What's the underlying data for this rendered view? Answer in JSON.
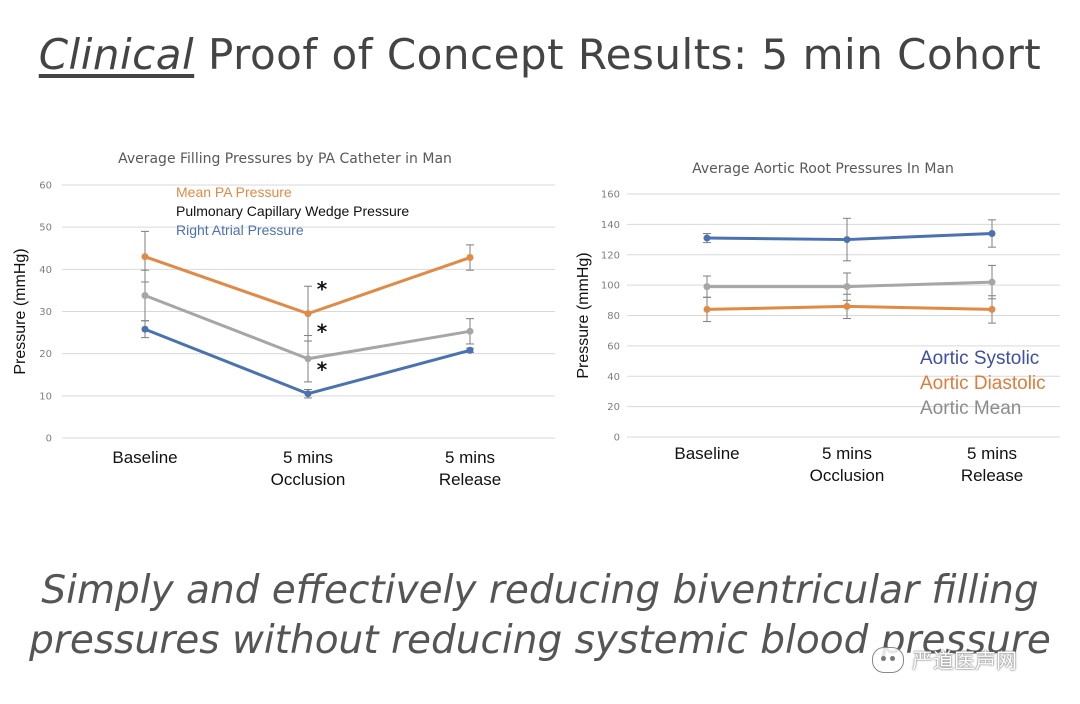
{
  "slide": {
    "title_emphasis": "Clinical",
    "title_rest": " Proof of Concept Results: 5 min Cohort",
    "tagline_line1": "Simply and effectively reducing biventricular filling",
    "tagline_line2": "pressures without reducing systemic blood pressure",
    "watermark": "严道医声网"
  },
  "chart_data": [
    {
      "type": "line",
      "title": "Average Filling Pressures by PA Catheter in Man",
      "xlabel": "",
      "ylabel": "Pressure (mmHg)",
      "ylim": [
        0,
        60
      ],
      "yticks": [
        "0",
        "10",
        "20",
        "30",
        "40",
        "50",
        "60"
      ],
      "categories": [
        [
          "Baseline"
        ],
        [
          "5 mins",
          "Occlusion"
        ],
        [
          "5 mins",
          "Release"
        ]
      ],
      "legend_position": "top-left",
      "grid": true,
      "series": [
        {
          "name": "Mean PA Pressure",
          "color": "#e08a45",
          "values": [
            43,
            29.5,
            42.8
          ],
          "errors": [
            6,
            6.5,
            3
          ]
        },
        {
          "name": "Pulmonary Capillary Wedge Pressure",
          "color": "#a6a6a6",
          "legend_color": "#111111",
          "values": [
            33.8,
            18.8,
            25.3
          ],
          "errors": [
            6,
            5.5,
            3
          ]
        },
        {
          "name": "Right Atrial Pressure",
          "color": "#4a72b0",
          "values": [
            25.8,
            10.5,
            20.8
          ],
          "errors": [
            2,
            1,
            0.5
          ]
        }
      ],
      "annotations": [
        {
          "text": "*",
          "category": 1,
          "y": 36
        },
        {
          "text": "*",
          "category": 1,
          "y": 26
        },
        {
          "text": "*",
          "category": 1,
          "y": 17
        }
      ]
    },
    {
      "type": "line",
      "title": "Average Aortic Root Pressures In Man",
      "xlabel": "",
      "ylabel": "Pressure (mmHg)",
      "ylim": [
        0,
        160
      ],
      "yticks": [
        "0",
        "20",
        "40",
        "60",
        "80",
        "100",
        "120",
        "140",
        "160"
      ],
      "categories": [
        [
          "Baseline"
        ],
        [
          "5 mins",
          "Occlusion"
        ],
        [
          "5 mins",
          "Release"
        ]
      ],
      "legend_position": "bottom-right",
      "grid": true,
      "series": [
        {
          "name": "Aortic Systolic",
          "color": "#4a72b0",
          "legend_color": "#3d4fa8",
          "values": [
            131,
            130,
            134
          ],
          "errors": [
            3,
            14,
            9
          ]
        },
        {
          "name": "Aortic Diastolic",
          "color": "#e08a45",
          "legend_color": "#e07b39",
          "values": [
            84,
            86,
            84
          ],
          "errors": [
            8,
            8,
            9
          ]
        },
        {
          "name": "Aortic Mean",
          "color": "#a6a6a6",
          "legend_color": "#8c8c8c",
          "values": [
            99,
            99,
            102
          ],
          "errors": [
            7,
            9,
            11
          ]
        }
      ]
    }
  ]
}
